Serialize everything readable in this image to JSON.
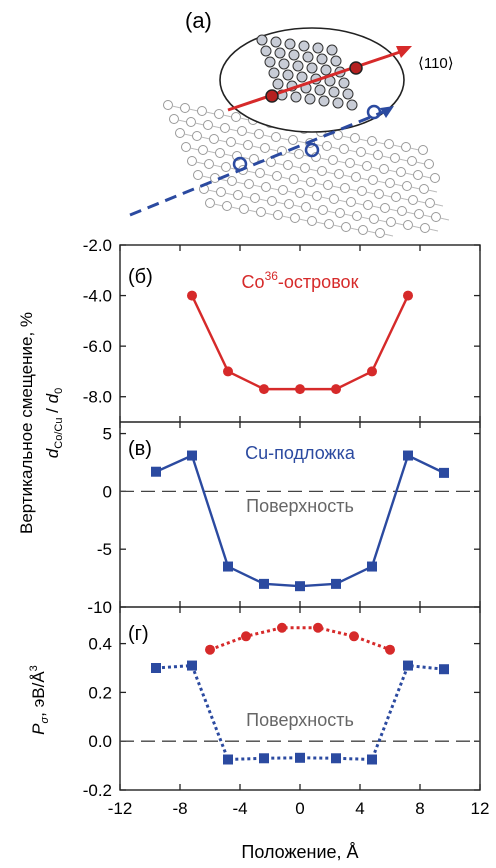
{
  "panel_a": {
    "label": "(a)",
    "direction": "⟨110⟩",
    "colors": {
      "island": "#d62a2a",
      "substrate": "#2b4aa0"
    }
  },
  "chart_data": [
    {
      "type": "line",
      "panel": "(б)",
      "ylabel_line1": "Вертикальное смещение, %",
      "ylabel_line2": "d_Co/Cu / d_0",
      "xlim": [
        -12,
        12
      ],
      "ylim": [
        -9,
        -2
      ],
      "yticks": [
        -2,
        -4,
        -6,
        -8
      ],
      "grid": false,
      "annotations": [
        "Co36-островок"
      ],
      "series": [
        {
          "name": "Co36-островок",
          "color": "#d62a2a",
          "marker": "circle",
          "line": "solid",
          "x": [
            -7.2,
            -4.8,
            -2.4,
            0,
            2.4,
            4.8,
            7.2
          ],
          "y": [
            -4.0,
            -7.0,
            -7.7,
            -7.7,
            -7.7,
            -7.0,
            -4.0
          ]
        }
      ]
    },
    {
      "type": "line",
      "panel": "(в)",
      "xlim": [
        -12,
        12
      ],
      "ylim": [
        -10,
        6
      ],
      "yticks": [
        5,
        0,
        -5,
        -10
      ],
      "grid": false,
      "reference_line": 0,
      "annotations": [
        "Cu-подложка",
        "Поверхность"
      ],
      "series": [
        {
          "name": "Cu-подложка",
          "color": "#2b4aa0",
          "marker": "square",
          "line": "solid",
          "x": [
            -9.6,
            -7.2,
            -4.8,
            -2.4,
            0,
            2.4,
            4.8,
            7.2,
            9.6
          ],
          "y": [
            1.7,
            3.1,
            -6.5,
            -8.0,
            -8.2,
            -8.0,
            -6.5,
            3.1,
            1.6
          ]
        }
      ]
    },
    {
      "type": "line",
      "panel": "(г)",
      "ylabel": "Pσ, эВ/Å3",
      "xlabel": "Положение, Å",
      "xlim": [
        -12,
        12
      ],
      "ylim": [
        -0.2,
        0.55
      ],
      "yticks": [
        0.4,
        0.2,
        0.0,
        -0.2
      ],
      "xticks": [
        -12,
        -8,
        -4,
        0,
        4,
        8,
        12
      ],
      "grid": false,
      "reference_line": 0,
      "annotations": [
        "Поверхность"
      ],
      "series": [
        {
          "name": "Co36-островок",
          "color": "#d62a2a",
          "marker": "circle",
          "line": "dotted",
          "x": [
            -6.0,
            -3.6,
            -1.2,
            1.2,
            3.6,
            6.0
          ],
          "y": [
            0.375,
            0.43,
            0.465,
            0.465,
            0.43,
            0.375
          ]
        },
        {
          "name": "Cu-подложка",
          "color": "#2b4aa0",
          "marker": "square",
          "line": "dotted",
          "x": [
            -9.6,
            -7.2,
            -4.8,
            -2.4,
            0,
            2.4,
            4.8,
            7.2,
            9.6
          ],
          "y": [
            0.3,
            0.31,
            -0.075,
            -0.07,
            -0.068,
            -0.07,
            -0.075,
            0.31,
            0.295
          ]
        }
      ]
    }
  ]
}
